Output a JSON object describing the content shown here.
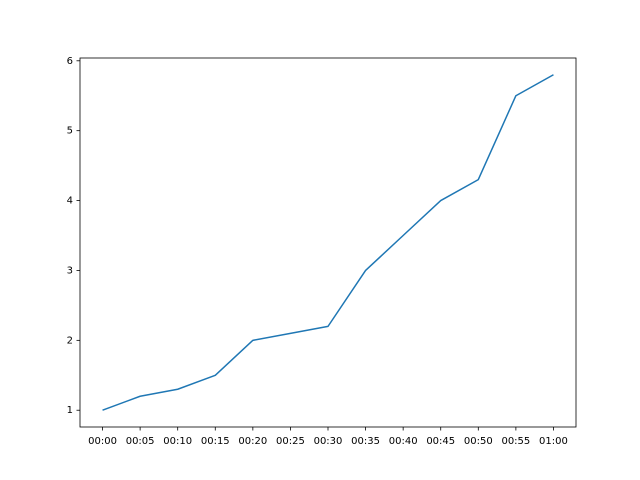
{
  "chart_data": {
    "type": "line",
    "categories": [
      "00:00",
      "00:05",
      "00:10",
      "00:15",
      "00:20",
      "00:25",
      "00:30",
      "00:35",
      "00:40",
      "00:45",
      "00:50",
      "00:55",
      "01:00"
    ],
    "values": [
      1,
      1.2,
      1.3,
      1.5,
      2.0,
      2.1,
      2.2,
      3.0,
      3.5,
      4.0,
      4.3,
      5.5,
      5.8
    ],
    "color": "#1f77b4",
    "ylim": [
      0.76,
      6.04
    ],
    "yticks": [
      1,
      2,
      3,
      4,
      5,
      6
    ],
    "grid": false
  }
}
